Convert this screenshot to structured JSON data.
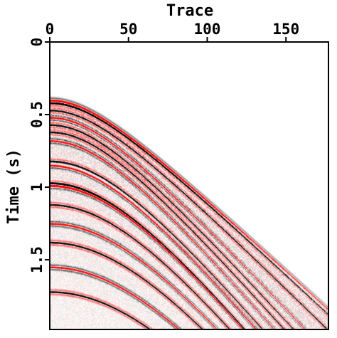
{
  "chart_data": {
    "type": "heatmap",
    "title": "",
    "xlabel": "Trace",
    "ylabel": "Time (s)",
    "xlim": [
      0,
      177
    ],
    "ylim": [
      0,
      1.98
    ],
    "y_inverted": true,
    "x_axis_position": "top",
    "x_ticks": [
      0,
      50,
      100,
      150
    ],
    "x_tick_labels": [
      "0",
      "50",
      "100",
      "150"
    ],
    "y_ticks": [
      0,
      0.5,
      1,
      1.5
    ],
    "y_tick_labels": [
      "0",
      "0.5",
      "1",
      "1.5"
    ],
    "grid": false,
    "legend": "none",
    "colormap": [
      "#000000",
      "#ffffff",
      "#e00000"
    ],
    "events": [
      {
        "t0": 0.4,
        "v": 1.18,
        "polarity": "red"
      },
      {
        "t0": 0.42,
        "v": 1.16,
        "polarity": "black"
      },
      {
        "t0": 0.47,
        "v": 1.1,
        "polarity": "black"
      },
      {
        "t0": 0.52,
        "v": 1.02,
        "polarity": "red"
      },
      {
        "t0": 0.57,
        "v": 0.98,
        "polarity": "black"
      },
      {
        "t0": 0.62,
        "v": 0.95,
        "polarity": "black"
      },
      {
        "t0": 0.68,
        "v": 0.92,
        "polarity": "red"
      },
      {
        "t0": 0.82,
        "v": 0.9,
        "polarity": "black"
      },
      {
        "t0": 0.85,
        "v": 0.88,
        "polarity": "red"
      },
      {
        "t0": 0.97,
        "v": 0.86,
        "polarity": "black"
      },
      {
        "t0": 0.99,
        "v": 0.86,
        "polarity": "red"
      },
      {
        "t0": 1.12,
        "v": 0.84,
        "polarity": "black"
      },
      {
        "t0": 1.25,
        "v": 0.83,
        "polarity": "red"
      },
      {
        "t0": 1.38,
        "v": 0.82,
        "polarity": "black"
      },
      {
        "t0": 1.55,
        "v": 0.8,
        "polarity": "red"
      },
      {
        "t0": 1.72,
        "v": 0.78,
        "polarity": "black"
      }
    ]
  }
}
